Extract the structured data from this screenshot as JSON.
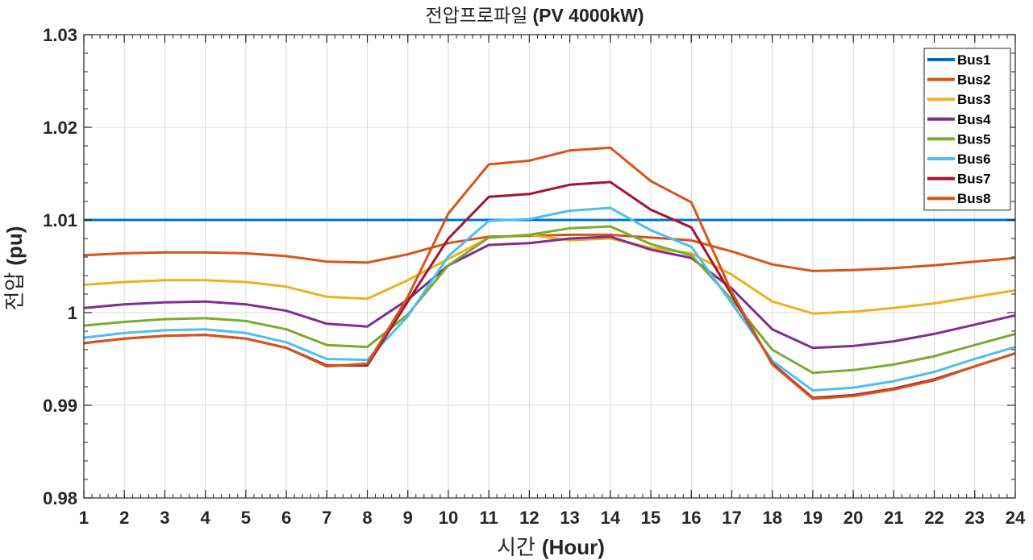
{
  "chart_data": {
    "type": "line",
    "title_ko": "전압프로파일",
    "title_en": "(PV 4000kW)",
    "xlabel_ko": "시간",
    "xlabel_en": "(Hour)",
    "ylabel_ko": "전압",
    "ylabel_en": "(pu)",
    "xlim": [
      1,
      24
    ],
    "ylim": [
      0.98,
      1.03
    ],
    "x": [
      1,
      2,
      3,
      4,
      5,
      6,
      7,
      8,
      9,
      10,
      11,
      12,
      13,
      14,
      15,
      16,
      17,
      18,
      19,
      20,
      21,
      22,
      23,
      24
    ],
    "x_tick_labels": [
      "1",
      "2",
      "3",
      "4",
      "5",
      "6",
      "7",
      "8",
      "9",
      "10",
      "11",
      "12",
      "13",
      "14",
      "15",
      "16",
      "17",
      "18",
      "19",
      "20",
      "21",
      "22",
      "23",
      "24"
    ],
    "y_ticks": [
      0.98,
      0.99,
      1,
      1.01,
      1.02,
      1.03
    ],
    "y_tick_labels": [
      "0.98",
      "0.99",
      "1",
      "1.01",
      "1.02",
      "1.03"
    ],
    "grid": true,
    "legend_position": "top-right",
    "series": [
      {
        "name": "Bus1",
        "color": "#0072BD",
        "values": [
          1.01,
          1.01,
          1.01,
          1.01,
          1.01,
          1.01,
          1.01,
          1.01,
          1.01,
          1.01,
          1.01,
          1.01,
          1.01,
          1.01,
          1.01,
          1.01,
          1.01,
          1.01,
          1.01,
          1.01,
          1.01,
          1.01,
          1.01,
          1.01
        ]
      },
      {
        "name": "Bus2",
        "color": "#D95319",
        "values": [
          1.0062,
          1.0064,
          1.0065,
          1.0065,
          1.0064,
          1.0061,
          1.0055,
          1.0054,
          1.0063,
          1.0075,
          1.0082,
          1.0083,
          1.0084,
          1.0084,
          1.0081,
          1.0078,
          1.0066,
          1.0052,
          1.0045,
          1.0046,
          1.0048,
          1.0051,
          1.0055,
          1.0059
        ]
      },
      {
        "name": "Bus3",
        "color": "#EDB120",
        "values": [
          1.003,
          1.0033,
          1.0035,
          1.0035,
          1.0033,
          1.0028,
          1.0017,
          1.0015,
          1.0035,
          1.0058,
          1.0081,
          1.0084,
          1.0078,
          1.008,
          1.007,
          1.0064,
          1.0041,
          1.0012,
          0.9999,
          1.0001,
          1.0005,
          1.001,
          1.0017,
          1.0024
        ]
      },
      {
        "name": "Bus4",
        "color": "#7E2F8E",
        "values": [
          1.0005,
          1.0009,
          1.0011,
          1.0012,
          1.0009,
          1.0002,
          0.9988,
          0.9985,
          1.0014,
          1.0051,
          1.0073,
          1.0075,
          1.008,
          1.0082,
          1.0068,
          1.0059,
          1.0026,
          0.9982,
          0.9962,
          0.9964,
          0.9969,
          0.9977,
          0.9987,
          0.9997
        ]
      },
      {
        "name": "Bus5",
        "color": "#77AC30",
        "values": [
          0.9986,
          0.999,
          0.9993,
          0.9994,
          0.9991,
          0.9982,
          0.9965,
          0.9963,
          0.9998,
          1.0051,
          1.0081,
          1.0084,
          1.0091,
          1.0093,
          1.0074,
          1.0062,
          1.0014,
          0.996,
          0.9935,
          0.9938,
          0.9944,
          0.9953,
          0.9965,
          0.9977
        ]
      },
      {
        "name": "Bus6",
        "color": "#4DBEEE",
        "values": [
          0.9973,
          0.9978,
          0.9981,
          0.9982,
          0.9978,
          0.9968,
          0.995,
          0.9949,
          0.9996,
          1.0061,
          1.0099,
          1.0101,
          1.011,
          1.0113,
          1.0089,
          1.0071,
          1.001,
          0.9948,
          0.9916,
          0.9919,
          0.9926,
          0.9936,
          0.995,
          0.9963
        ]
      },
      {
        "name": "Bus7",
        "color": "#A2142F",
        "values": [
          0.9967,
          0.9972,
          0.9975,
          0.9976,
          0.9972,
          0.9962,
          0.9943,
          0.9943,
          1.0012,
          1.008,
          1.0125,
          1.0128,
          1.0138,
          1.0141,
          1.0111,
          1.0092,
          1.0019,
          0.9945,
          0.9908,
          0.9911,
          0.9918,
          0.9928,
          0.9942,
          0.9956
        ]
      },
      {
        "name": "Bus8",
        "color": "#D95319",
        "values": [
          0.9967,
          0.9972,
          0.9975,
          0.9976,
          0.9972,
          0.9962,
          0.9942,
          0.9945,
          1.0017,
          1.0107,
          1.016,
          1.0164,
          1.0175,
          1.0178,
          1.0142,
          1.0119,
          1.0022,
          0.9944,
          0.9907,
          0.991,
          0.9917,
          0.9927,
          0.9942,
          0.9956
        ]
      }
    ]
  }
}
